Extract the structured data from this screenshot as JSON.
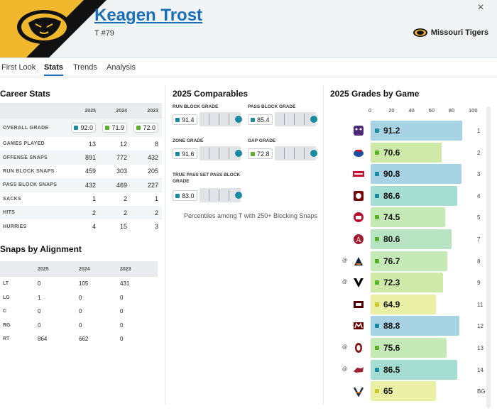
{
  "player": {
    "name": "Keagen Trost",
    "position": "T #79",
    "team": "Missouri Tigers"
  },
  "close_icon": "×",
  "tabs": [
    "First Look",
    "Stats",
    "Trends",
    "Analysis"
  ],
  "career": {
    "title": "Career Stats",
    "years": [
      "2025",
      "2024",
      "2023"
    ],
    "overall": {
      "label": "OVERALL GRADE",
      "values": [
        "92.0",
        "71.9",
        "72.0"
      ],
      "colors": [
        "#1a8aa0",
        "#5ab02c",
        "#5ab02c"
      ]
    },
    "rows": [
      {
        "label": "GAMES PLAYED",
        "values": [
          "13",
          "12",
          "8"
        ]
      },
      {
        "label": "OFFENSE SNAPS",
        "values": [
          "891",
          "772",
          "432"
        ]
      },
      {
        "label": "RUN BLOCK SNAPS",
        "values": [
          "459",
          "303",
          "205"
        ]
      },
      {
        "label": "PASS BLOCK SNAPS",
        "values": [
          "432",
          "469",
          "227"
        ]
      },
      {
        "label": "SACKS",
        "values": [
          "1",
          "2",
          "1"
        ]
      },
      {
        "label": "HITS",
        "values": [
          "2",
          "2",
          "2"
        ]
      },
      {
        "label": "HURRIES",
        "values": [
          "4",
          "15",
          "3"
        ]
      }
    ]
  },
  "alignment": {
    "title": "Snaps by Alignment",
    "years": [
      "2025",
      "2024",
      "2023"
    ],
    "rows": [
      {
        "label": "LT",
        "values": [
          "0",
          "105",
          "431"
        ]
      },
      {
        "label": "LG",
        "values": [
          "1",
          "0",
          "0"
        ]
      },
      {
        "label": "C",
        "values": [
          "0",
          "0",
          "0"
        ]
      },
      {
        "label": "RG",
        "values": [
          "0",
          "0",
          "0"
        ]
      },
      {
        "label": "RT",
        "values": [
          "864",
          "662",
          "0"
        ]
      }
    ]
  },
  "comparables": {
    "title": "2025 Comparables",
    "items": [
      {
        "label": "RUN BLOCK GRADE",
        "value": "91.4",
        "color": "#1a8aa0"
      },
      {
        "label": "PASS BLOCK GRADE",
        "value": "85.4",
        "color": "#1a8aa0"
      },
      {
        "label": "ZONE GRADE",
        "value": "91.6",
        "color": "#1a8aa0"
      },
      {
        "label": "GAP GRADE",
        "value": "72.8",
        "color": "#5ab02c"
      },
      {
        "label": "TRUE PASS SET PASS BLOCK GRADE",
        "value": "83.0",
        "color": "#1a8aa0"
      }
    ],
    "caption": "Percentiles among T with 250+ Blocking Snaps"
  },
  "grades": {
    "title": "2025 Grades by Game",
    "scale": [
      "0",
      "20",
      "40",
      "60",
      "80",
      "100"
    ],
    "games": [
      {
        "grade": "91.2",
        "grade_num": 91.2,
        "week": "1",
        "away": "",
        "opp": "bear-icon",
        "color": "#a8d3e4",
        "sq": "#1a8aa0"
      },
      {
        "grade": "70.6",
        "grade_num": 70.6,
        "week": "2",
        "away": "",
        "opp": "jayhawk-icon",
        "color": "#cfe9a8",
        "sq": "#5ab02c"
      },
      {
        "grade": "90.8",
        "grade_num": 90.8,
        "week": "3",
        "away": "",
        "opp": "wordmark-icon",
        "color": "#a8d3e4",
        "sq": "#1a8aa0"
      },
      {
        "grade": "86.6",
        "grade_num": 86.6,
        "week": "4",
        "away": "",
        "opp": "gamecock-icon",
        "color": "#a6ddd3",
        "sq": "#1a8aa0"
      },
      {
        "grade": "74.5",
        "grade_num": 74.5,
        "week": "5",
        "away": "",
        "opp": "bulldog-icon",
        "color": "#c6eab7",
        "sq": "#5ab02c"
      },
      {
        "grade": "80.6",
        "grade_num": 80.6,
        "week": "7",
        "away": "",
        "opp": "a-icon",
        "color": "#b8e4c4",
        "sq": "#5ab02c"
      },
      {
        "grade": "76.7",
        "grade_num": 76.7,
        "week": "8",
        "away": "@",
        "opp": "au-icon",
        "color": "#c6eab7",
        "sq": "#5ab02c"
      },
      {
        "grade": "72.3",
        "grade_num": 72.3,
        "week": "9",
        "away": "@",
        "opp": "v-icon",
        "color": "#cfe9a8",
        "sq": "#5ab02c"
      },
      {
        "grade": "64.9",
        "grade_num": 64.9,
        "week": "11",
        "away": "",
        "opp": "atm-icon",
        "color": "#eaf0a6",
        "sq": "#c9c82a"
      },
      {
        "grade": "88.8",
        "grade_num": 88.8,
        "week": "12",
        "away": "",
        "opp": "msu-icon",
        "color": "#a8d3e4",
        "sq": "#1a8aa0"
      },
      {
        "grade": "75.6",
        "grade_num": 75.6,
        "week": "13",
        "away": "@",
        "opp": "ou-icon",
        "color": "#c6eab7",
        "sq": "#5ab02c"
      },
      {
        "grade": "86.5",
        "grade_num": 86.5,
        "week": "14",
        "away": "@",
        "opp": "hog-icon",
        "color": "#a6ddd3",
        "sq": "#1a8aa0"
      },
      {
        "grade": "65",
        "grade_num": 65,
        "week": "BG",
        "away": "",
        "opp": "uva-icon",
        "color": "#eaf0a6",
        "sq": "#c9c82a"
      }
    ]
  }
}
